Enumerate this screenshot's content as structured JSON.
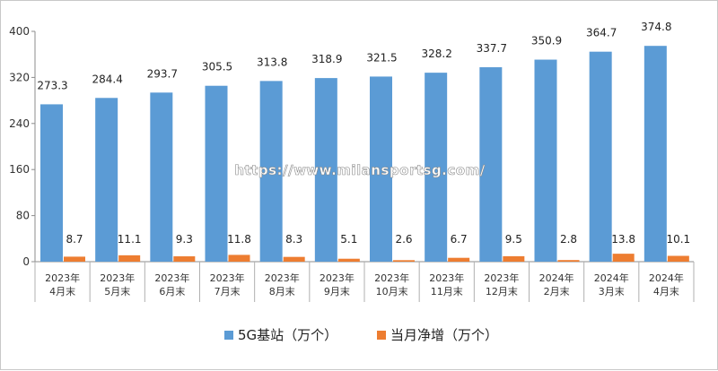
{
  "chart_data": {
    "type": "bar",
    "categories": [
      [
        "2023年",
        "4月末"
      ],
      [
        "2023年",
        "5月末"
      ],
      [
        "2023年",
        "6月末"
      ],
      [
        "2023年",
        "7月末"
      ],
      [
        "2023年",
        "8月末"
      ],
      [
        "2023年",
        "9月末"
      ],
      [
        "2023年",
        "10月末"
      ],
      [
        "2023年",
        "11月末"
      ],
      [
        "2023年",
        "12月末"
      ],
      [
        "2024年",
        "2月末"
      ],
      [
        "2024年",
        "3月末"
      ],
      [
        "2024年",
        "4月末"
      ]
    ],
    "series": [
      {
        "name": "5G基站（万个）",
        "color": "#5b9bd5",
        "values": [
          273.3,
          284.4,
          293.7,
          305.5,
          313.8,
          318.9,
          321.5,
          328.2,
          337.7,
          350.9,
          364.7,
          374.8
        ],
        "labels": [
          "273.3",
          "284.4",
          "293.7",
          "305.5",
          "313.8",
          "318.9",
          "321.5",
          "328.2",
          "337.7",
          "350.9",
          "364.7",
          "374.8"
        ]
      },
      {
        "name": "当月净增（万个）",
        "color": "#ed7d31",
        "values": [
          8.7,
          11.1,
          9.3,
          11.8,
          8.3,
          5.1,
          2.6,
          6.7,
          9.5,
          2.8,
          13.8,
          10.1
        ],
        "labels": [
          "8.7",
          "11.1",
          "9.3",
          "11.8",
          "8.3",
          "5.1",
          "2.6",
          "6.7",
          "9.5",
          "2.8",
          "13.8",
          "10.1"
        ]
      }
    ],
    "yticks": [
      "0",
      "80",
      "160",
      "240",
      "320",
      "400"
    ],
    "ylim": [
      0,
      400
    ],
    "grid": false,
    "legend_position": "bottom"
  },
  "watermark": "https://www.milansportsg.com/"
}
